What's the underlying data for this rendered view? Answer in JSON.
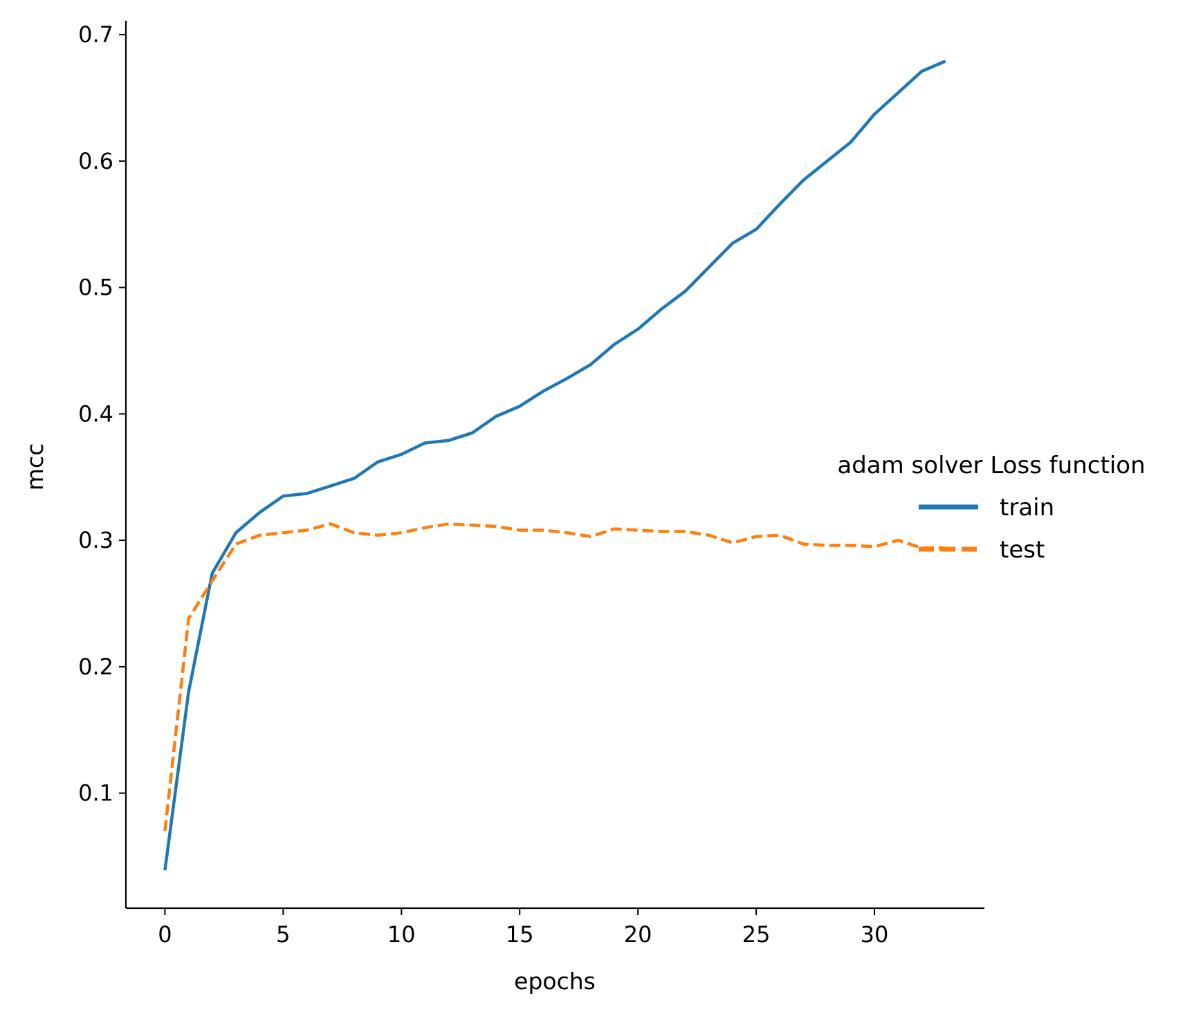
{
  "chart_data": {
    "type": "line",
    "title": "",
    "xlabel": "epochs",
    "ylabel": "mcc",
    "xlim": [
      -1.65,
      34.65
    ],
    "ylim": [
      0.009,
      0.711
    ],
    "xticks": [
      0,
      5,
      10,
      15,
      20,
      25,
      30
    ],
    "yticks": [
      0.1,
      0.2,
      0.3,
      0.4,
      0.5,
      0.6,
      0.7
    ],
    "grid": false,
    "legend": {
      "title": "adam solver Loss function",
      "placement": "right"
    },
    "x": [
      0,
      1,
      2,
      3,
      4,
      5,
      6,
      7,
      8,
      9,
      10,
      11,
      12,
      13,
      14,
      15,
      16,
      17,
      18,
      19,
      20,
      21,
      22,
      23,
      24,
      25,
      26,
      27,
      28,
      29,
      30,
      31,
      32,
      33
    ],
    "series": [
      {
        "name": "train",
        "color": "#1f77b4",
        "style": "solid",
        "values": [
          0.039,
          0.18,
          0.274,
          0.306,
          0.322,
          0.335,
          0.337,
          0.343,
          0.349,
          0.362,
          0.368,
          0.377,
          0.379,
          0.385,
          0.398,
          0.406,
          0.418,
          0.428,
          0.439,
          0.455,
          0.467,
          0.483,
          0.497,
          0.516,
          0.535,
          0.546,
          0.566,
          0.585,
          0.6,
          0.615,
          0.637,
          0.654,
          0.671,
          0.679
        ]
      },
      {
        "name": "test",
        "color": "#ff7f0e",
        "style": "dashed",
        "values": [
          0.07,
          0.238,
          0.268,
          0.297,
          0.304,
          0.306,
          0.308,
          0.313,
          0.306,
          0.304,
          0.306,
          0.31,
          0.313,
          0.312,
          0.311,
          0.308,
          0.308,
          0.306,
          0.303,
          0.309,
          0.308,
          0.307,
          0.307,
          0.304,
          0.298,
          0.303,
          0.304,
          0.297,
          0.296,
          0.296,
          0.295,
          0.3,
          0.294,
          0.294
        ]
      }
    ]
  }
}
